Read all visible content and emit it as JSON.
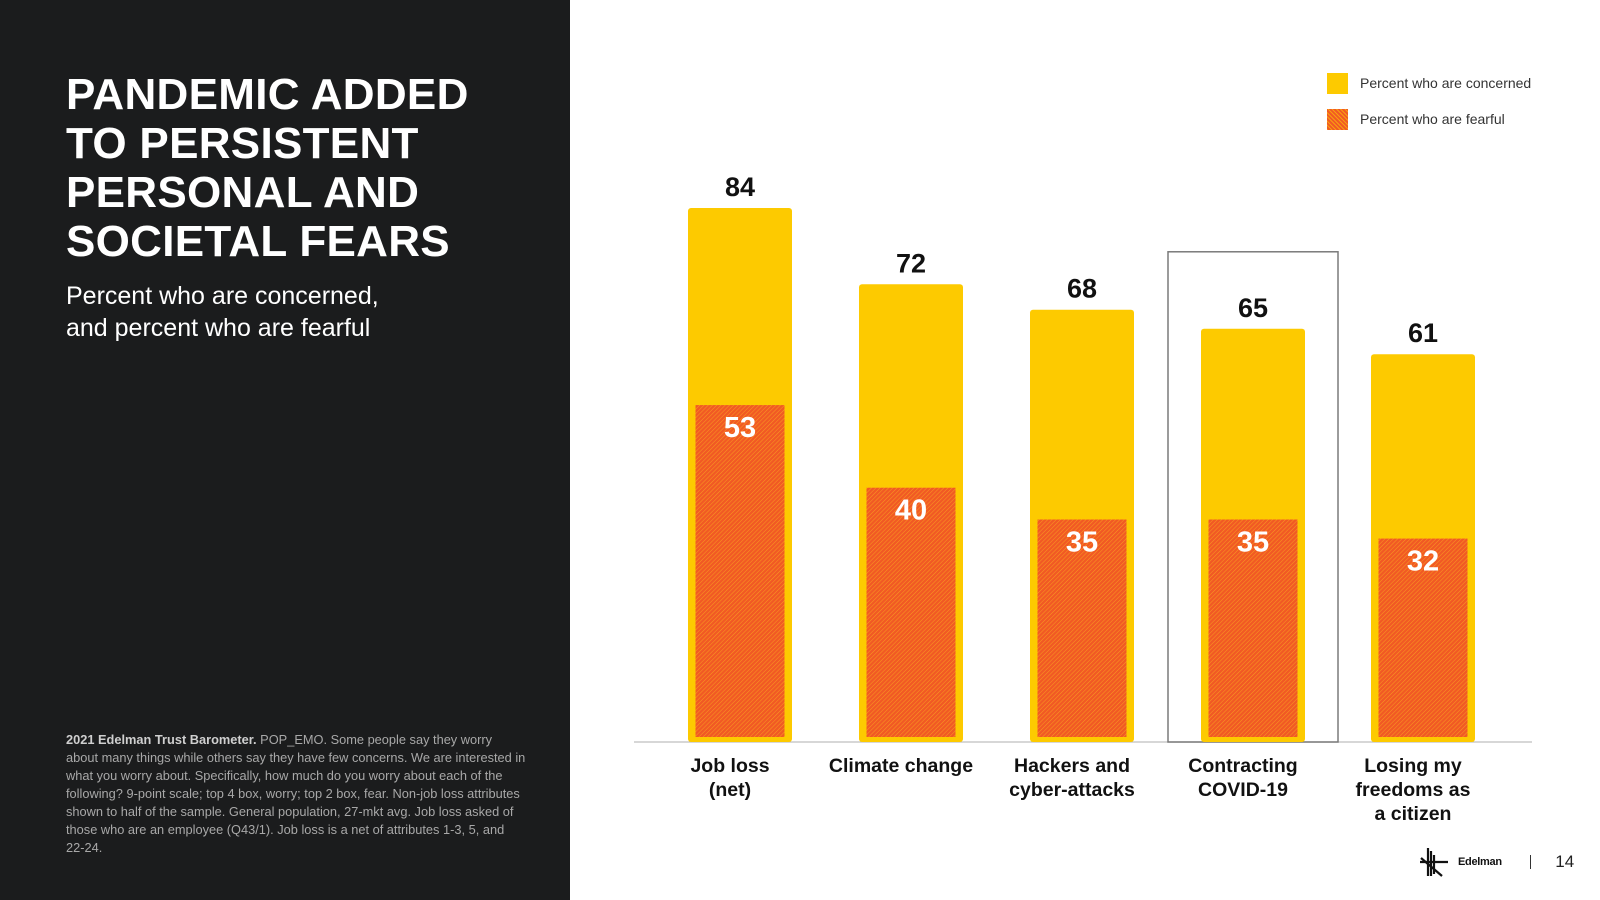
{
  "slide": {
    "title_lines": [
      "PANDEMIC ADDED",
      "TO PERSISTENT",
      "PERSONAL AND",
      "SOCIETAL FEARS"
    ],
    "subtitle_lines": [
      "Percent who are concerned,",
      "and percent who are fearful"
    ],
    "footnote_bold": "2021 Edelman Trust Barometer.",
    "footnote_text": " POP_EMO. Some people say they worry about many things while others say they have few concerns. We are interested in what you worry about. Specifically, how much do you worry about each of the following? 9-point scale; top 4 box, worry; top 2 box, fear. Non-job loss attributes shown to half of the sample. General population, 27-mkt avg. Job loss asked of those who are an employee (Q43/1). Job loss is a net of attributes 1-3, 5, and 22-24.",
    "logo_text": "Edelman",
    "page_number": "14"
  },
  "legend": {
    "concerned": "Percent who are concerned",
    "fearful": "Percent who are fearful"
  },
  "chart_data": {
    "type": "bar",
    "title": "Percent who are concerned, and percent who are fearful",
    "categories": [
      [
        "Job loss",
        "(net)"
      ],
      [
        "Climate change"
      ],
      [
        "Hackers and",
        "cyber-attacks"
      ],
      [
        "Contracting",
        "COVID-19"
      ],
      [
        "Losing my",
        "freedoms as",
        "a citizen"
      ]
    ],
    "series": [
      {
        "name": "Percent who are concerned",
        "values": [
          84,
          72,
          68,
          65,
          61
        ],
        "color": "#fdca00"
      },
      {
        "name": "Percent who are fearful",
        "values": [
          53,
          40,
          35,
          35,
          32
        ],
        "color": "#f15a24"
      }
    ],
    "highlighted_category": "Contracting COVID-19",
    "ylim": [
      0,
      84
    ],
    "legend_position": "top-right",
    "xlabel": "",
    "ylabel": ""
  }
}
